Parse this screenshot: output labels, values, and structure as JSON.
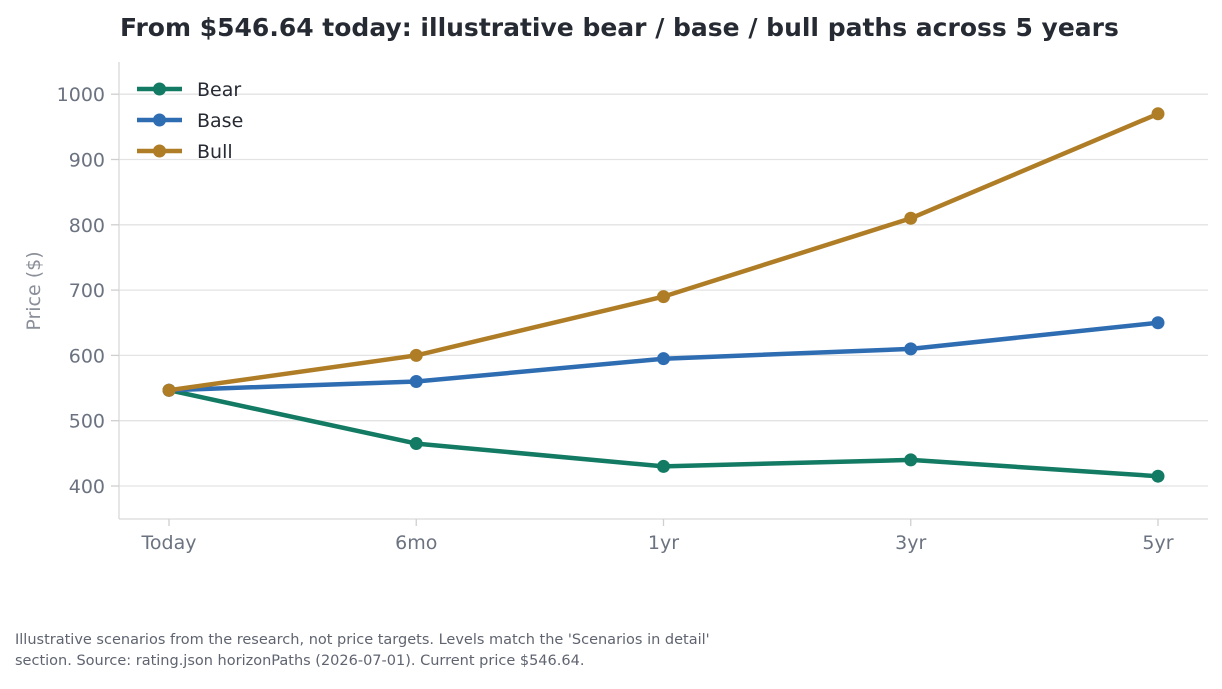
{
  "chart_data": {
    "type": "line",
    "title": "From $546.64 today: illustrative bear / base / bull paths across 5 years",
    "xlabel": "",
    "ylabel": "Price ($)",
    "categories": [
      "Today",
      "6mo",
      "1yr",
      "3yr",
      "5yr"
    ],
    "yticks": [
      400,
      500,
      600,
      700,
      800,
      900,
      1000
    ],
    "ylim": [
      350,
      1050
    ],
    "grid": "horizontal",
    "legend": "top-left",
    "series": [
      {
        "name": "Bear",
        "color": "#137a63",
        "values": [
          546.64,
          465,
          430,
          440,
          415
        ]
      },
      {
        "name": "Base",
        "color": "#2f6db3",
        "values": [
          546.64,
          560,
          595,
          610,
          650
        ]
      },
      {
        "name": "Bull",
        "color": "#b07d27",
        "values": [
          546.64,
          600,
          690,
          810,
          970
        ]
      }
    ]
  },
  "footnote": {
    "line1": "Illustrative scenarios from the research, not price targets. Levels match the 'Scenarios in detail'",
    "line2": "section. Source: rating.json horizonPaths (2026-07-01). Current price $546.64."
  }
}
